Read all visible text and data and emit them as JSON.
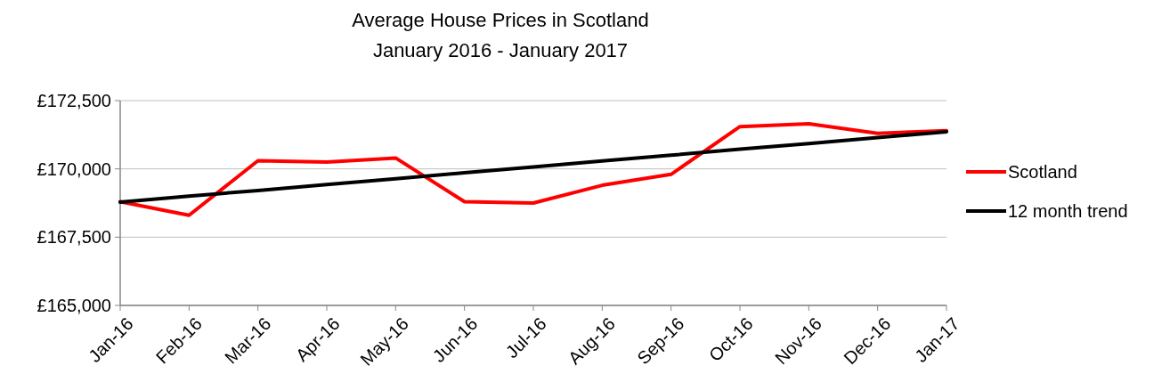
{
  "chart_data": {
    "type": "line",
    "title": "Average House Prices in Scotland",
    "subtitle": "January 2016 - January 2017",
    "categories": [
      "Jan-16",
      "Feb-16",
      "Mar-16",
      "Apr-16",
      "May-16",
      "Jun-16",
      "Jul-16",
      "Aug-16",
      "Sep-16",
      "Oct-16",
      "Nov-16",
      "Dec-16",
      "Jan-17"
    ],
    "series": [
      {
        "name": "Scotland",
        "color": "#ff0000",
        "values": [
          168800,
          168300,
          170300,
          170250,
          170400,
          168800,
          168750,
          169400,
          169800,
          171550,
          171650,
          171300,
          171400
        ]
      },
      {
        "name": "12 month trend",
        "color": "#000000",
        "values": [
          168780,
          169000,
          169210,
          169430,
          169640,
          169860,
          170070,
          170290,
          170500,
          170720,
          170930,
          171150,
          171360
        ]
      }
    ],
    "ylim": [
      165000,
      172500
    ],
    "yticks": [
      {
        "value": 165000,
        "label": "£165,000"
      },
      {
        "value": 167500,
        "label": "£167,500"
      },
      {
        "value": 170000,
        "label": "£170,000"
      },
      {
        "value": 172500,
        "label": "£172,500"
      }
    ],
    "grid": "y",
    "legend": "right",
    "marker": "none",
    "line_style": "solid"
  }
}
